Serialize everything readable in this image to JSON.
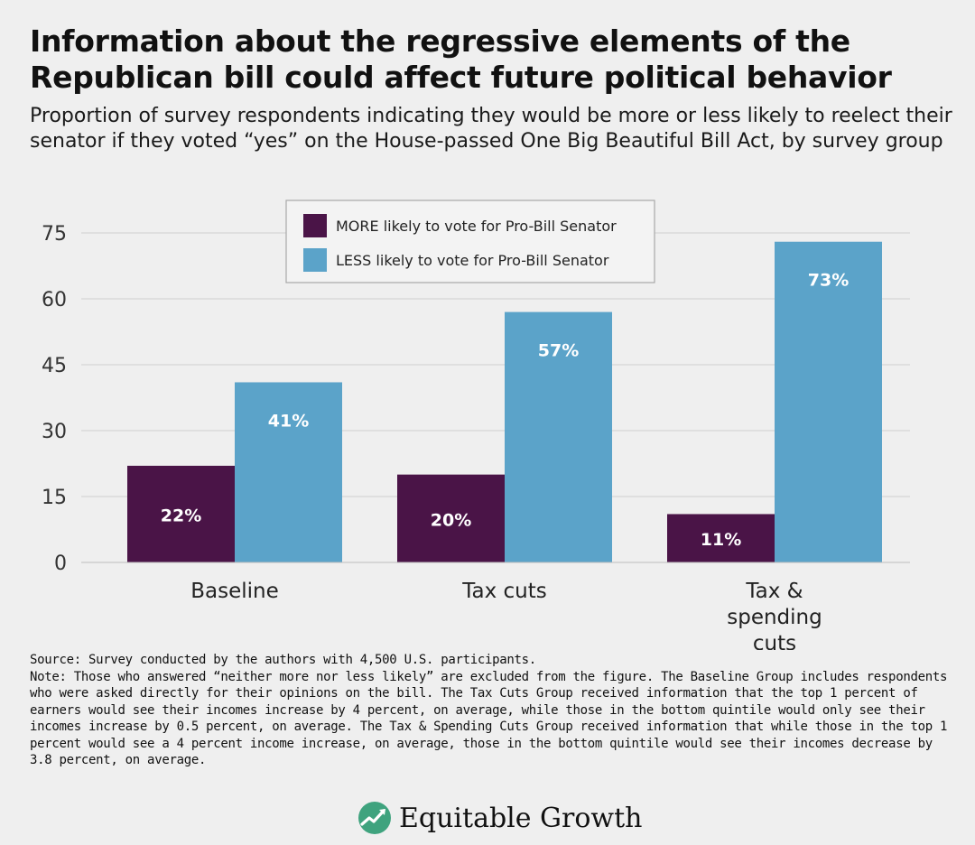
{
  "chart_data": {
    "type": "bar",
    "title": "Information about the regressive elements of the Republican bill could affect future political behavior",
    "subtitle": "Proportion of survey respondents indicating they would be more or less likely to reelect their senator if they voted “yes” on the House-passed One Big Beautiful Bill Act, by survey group",
    "categories": [
      [
        "Baseline"
      ],
      [
        "Tax cuts"
      ],
      [
        "Tax &",
        "spending",
        "cuts"
      ]
    ],
    "series": [
      {
        "name": "MORE likely to vote for Pro-Bill Senator",
        "values": [
          22,
          20,
          11
        ],
        "labels": [
          "22%",
          "20%",
          "11%"
        ],
        "color": "#4a1447"
      },
      {
        "name": "LESS likely to vote for Pro-Bill Senator",
        "values": [
          41,
          57,
          73
        ],
        "labels": [
          "41%",
          "57%",
          "73%"
        ],
        "color": "#5ba3c9"
      }
    ],
    "yticks": [
      "0",
      "15",
      "30",
      "45",
      "60",
      "75"
    ],
    "ylim": [
      0,
      75
    ],
    "grid": true,
    "legend_position": "top-center"
  },
  "footer": {
    "source": "Source: Survey conducted by the authors with 4,500 U.S. participants.",
    "note": "Note: Those who answered “neither more nor less likely” are excluded from the figure. The Baseline Group includes respondents who were asked directly for their opinions on the bill.  The Tax Cuts Group received information that the top 1 percent of earners would see their incomes increase by 4 percent, on average, while those in the bottom quintile would only see their incomes increase by 0.5 percent, on average. The Tax & Spending Cuts Group received information that while those in the top 1 percent would see a 4 percent income increase, on average, those in the bottom quintile would see their incomes decrease by 3.8 percent, on average."
  },
  "brand": {
    "name": "Equitable Growth",
    "icon": "growth-leaf-icon",
    "accent": "#3fa37e"
  }
}
